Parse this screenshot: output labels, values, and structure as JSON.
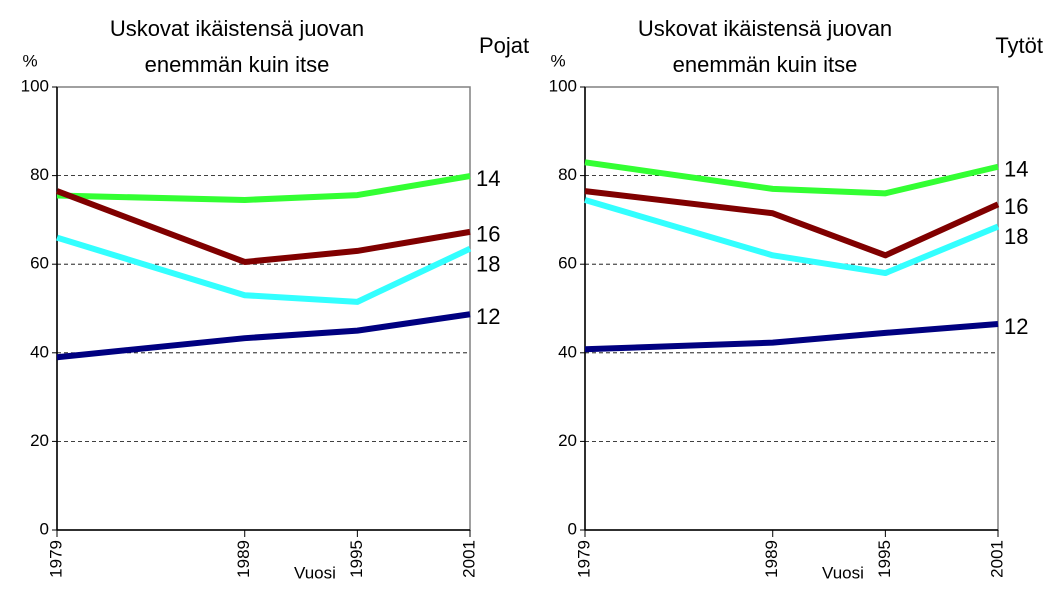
{
  "chart_data": [
    {
      "type": "line",
      "title": [
        "Uskovat ikäistensä juovan",
        "enemmän kuin itse"
      ],
      "subtitle": "Pojat",
      "y_label": "%",
      "x_label": "Vuosi",
      "x": [
        1979,
        1989,
        1995,
        2001
      ],
      "xlim": [
        1979,
        2001
      ],
      "xticks": [
        1979,
        1989,
        1995,
        2001
      ],
      "ylim": [
        0,
        100
      ],
      "yticks": [
        0,
        20,
        40,
        60,
        80,
        100
      ],
      "grid": true,
      "series": [
        {
          "name": "14",
          "color": "#33ff33",
          "values": [
            75.5,
            74.5,
            75.6,
            79.9
          ]
        },
        {
          "name": "16",
          "color": "#800000",
          "values": [
            76.5,
            60.5,
            63,
            67.3
          ]
        },
        {
          "name": "18",
          "color": "#33ffff",
          "values": [
            66,
            53,
            51.5,
            63.5
          ]
        },
        {
          "name": "12",
          "color": "#000080",
          "values": [
            39,
            43.3,
            45,
            48.7
          ]
        }
      ]
    },
    {
      "type": "line",
      "title": [
        "Uskovat ikäistensä juovan",
        "enemmän kuin itse"
      ],
      "subtitle": "Tytöt",
      "y_label": "%",
      "x_label": "Vuosi",
      "x": [
        1979,
        1989,
        1995,
        2001
      ],
      "xlim": [
        1979,
        2001
      ],
      "xticks": [
        1979,
        1989,
        1995,
        2001
      ],
      "ylim": [
        0,
        100
      ],
      "yticks": [
        0,
        20,
        40,
        60,
        80,
        100
      ],
      "grid": true,
      "series": [
        {
          "name": "14",
          "color": "#33ff33",
          "values": [
            83,
            77,
            76,
            82
          ]
        },
        {
          "name": "16",
          "color": "#800000",
          "values": [
            76.5,
            71.5,
            62,
            73.5
          ]
        },
        {
          "name": "18",
          "color": "#33ffff",
          "values": [
            74.5,
            62,
            58,
            68.5
          ]
        },
        {
          "name": "12",
          "color": "#000080",
          "values": [
            40.8,
            42.3,
            44.5,
            46.5
          ]
        }
      ]
    }
  ]
}
